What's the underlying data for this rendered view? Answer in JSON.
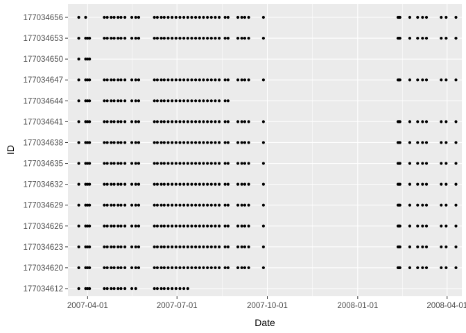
{
  "chart_data": {
    "type": "scatter",
    "title": "",
    "xlabel": "Date",
    "ylabel": "ID",
    "grid": true,
    "legend": "none",
    "xlim": [
      "2007-03-12",
      "2008-04-16"
    ],
    "x_ticks": [
      "2007-04-01",
      "2007-07-01",
      "2007-10-01",
      "2008-01-01",
      "2008-04-01"
    ],
    "y_categories": [
      "177034612",
      "177034620",
      "177034623",
      "177034626",
      "177034629",
      "177034632",
      "177034635",
      "177034638",
      "177034641",
      "177034644",
      "177034647",
      "177034650",
      "177034653",
      "177034656"
    ],
    "colors": {
      "panel_background": "#ebebeb",
      "grid": "#ffffff",
      "point": "#000000"
    },
    "sampling_dates": {
      "full": [
        "2007-03-23",
        "2007-03-30",
        "2007-04-01",
        "2007-04-03",
        "2007-04-18",
        "2007-04-21",
        "2007-04-25",
        "2007-04-28",
        "2007-05-02",
        "2007-05-05",
        "2007-05-09",
        "2007-05-16",
        "2007-05-20",
        "2007-05-23",
        "2007-06-08",
        "2007-06-11",
        "2007-06-15",
        "2007-06-18",
        "2007-06-22",
        "2007-06-26",
        "2007-06-30",
        "2007-07-04",
        "2007-07-08",
        "2007-07-12",
        "2007-07-16",
        "2007-07-20",
        "2007-07-24",
        "2007-07-28",
        "2007-08-01",
        "2007-08-05",
        "2007-08-09",
        "2007-08-13",
        "2007-08-19",
        "2007-08-22",
        "2007-09-01",
        "2007-09-05",
        "2007-09-08",
        "2007-09-12",
        "2007-09-27",
        "2008-02-11",
        "2008-02-12",
        "2008-02-13",
        "2008-02-23",
        "2008-03-02",
        "2008-03-07",
        "2008-03-11",
        "2008-03-26",
        "2008-03-31",
        "2008-04-10"
      ],
      "early": [
        "2007-03-23",
        "2007-03-30",
        "2007-04-01",
        "2007-04-03"
      ],
      "sparse_first": [
        "2007-03-23",
        "2007-03-30",
        "2007-04-18",
        "2007-04-21",
        "2007-04-25",
        "2007-04-28",
        "2007-05-02",
        "2007-05-05",
        "2007-05-09",
        "2007-05-16",
        "2007-05-20",
        "2007-05-23",
        "2007-06-08",
        "2007-06-11",
        "2007-06-15",
        "2007-06-18",
        "2007-06-22",
        "2007-06-26",
        "2007-06-30",
        "2007-07-04",
        "2007-07-08",
        "2007-07-12",
        "2007-07-16",
        "2007-07-20",
        "2007-07-24",
        "2007-07-28",
        "2007-08-01",
        "2007-08-05",
        "2007-08-09",
        "2007-08-13",
        "2007-08-19",
        "2007-08-22",
        "2007-09-01",
        "2007-09-05",
        "2007-09-08",
        "2007-09-12",
        "2007-09-27",
        "2008-02-11",
        "2008-02-12",
        "2008-02-13",
        "2008-02-23",
        "2008-03-02",
        "2008-03-07",
        "2008-03-11",
        "2008-03-26",
        "2008-03-31",
        "2008-04-10"
      ],
      "partial": [
        "2007-03-23",
        "2007-03-30",
        "2007-04-01",
        "2007-04-03",
        "2007-04-18",
        "2007-04-21",
        "2007-04-25",
        "2007-04-28",
        "2007-05-02",
        "2007-05-05",
        "2007-05-09",
        "2007-05-16",
        "2007-05-20",
        "2007-05-23",
        "2007-06-08",
        "2007-06-11",
        "2007-06-15",
        "2007-06-18",
        "2007-06-22",
        "2007-06-26",
        "2007-06-30",
        "2007-07-04",
        "2007-07-08",
        "2007-07-12",
        "2007-07-16",
        "2007-07-20",
        "2007-07-24",
        "2007-07-28",
        "2007-08-01",
        "2007-08-05",
        "2007-08-09",
        "2007-08-13",
        "2007-08-19",
        "2007-08-22"
      ],
      "short": [
        "2007-03-23",
        "2007-03-30",
        "2007-04-01",
        "2007-04-03",
        "2007-04-18",
        "2007-04-21",
        "2007-04-25",
        "2007-04-28",
        "2007-05-02",
        "2007-05-05",
        "2007-05-09",
        "2007-05-16",
        "2007-05-20",
        "2007-06-08",
        "2007-06-11",
        "2007-06-15",
        "2007-06-18",
        "2007-06-22",
        "2007-06-26",
        "2007-06-30",
        "2007-07-04",
        "2007-07-08",
        "2007-07-12"
      ]
    },
    "series": [
      {
        "id": "177034612",
        "dates_ref": "short"
      },
      {
        "id": "177034620",
        "dates_ref": "full"
      },
      {
        "id": "177034623",
        "dates_ref": "full"
      },
      {
        "id": "177034626",
        "dates_ref": "full"
      },
      {
        "id": "177034629",
        "dates_ref": "full"
      },
      {
        "id": "177034632",
        "dates_ref": "full"
      },
      {
        "id": "177034635",
        "dates_ref": "full"
      },
      {
        "id": "177034638",
        "dates_ref": "full"
      },
      {
        "id": "177034641",
        "dates_ref": "full"
      },
      {
        "id": "177034644",
        "dates_ref": "partial"
      },
      {
        "id": "177034647",
        "dates_ref": "full"
      },
      {
        "id": "177034650",
        "dates_ref": "early"
      },
      {
        "id": "177034653",
        "dates_ref": "full"
      },
      {
        "id": "177034656",
        "dates_ref": "sparse_first"
      }
    ]
  }
}
